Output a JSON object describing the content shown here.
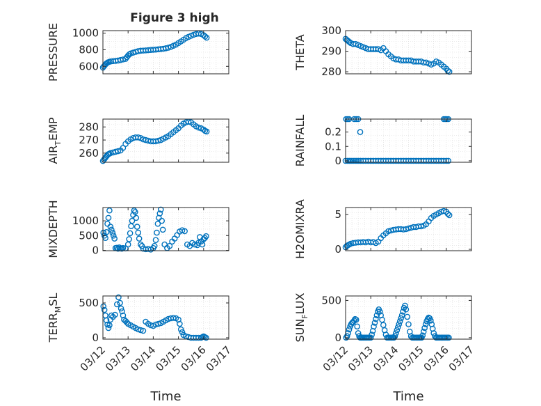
{
  "figure": {
    "title": "Figure 3 high",
    "background": "#ffffff",
    "marker_color": "#0072BD"
  },
  "chart_data": [
    {
      "type": "scatter",
      "title": "Figure 3 high",
      "ylabel": "PRESSURE",
      "xlabel": "",
      "ylim": [
        510,
        1030
      ],
      "yticks": [
        600,
        800,
        1000
      ],
      "xlim": [
        0,
        5
      ],
      "grid": true,
      "series": [
        {
          "x": [
            0,
            0.04,
            0.08,
            0.12,
            0.16,
            0.2,
            0.26,
            0.32,
            0.4,
            0.5,
            0.6,
            0.7,
            0.8,
            0.9,
            0.95,
            1.0,
            1.05,
            1.1,
            1.2,
            1.3,
            1.4,
            1.5,
            1.6,
            1.7,
            1.8,
            1.9,
            2.0,
            2.1,
            2.2,
            2.3,
            2.4,
            2.5,
            2.6,
            2.7,
            2.8,
            2.9,
            3.0,
            3.1,
            3.2,
            3.3,
            3.4,
            3.5,
            3.6,
            3.7,
            3.8,
            3.9,
            4.0,
            4.06,
            4.12
          ],
          "y": [
            585,
            600,
            615,
            630,
            640,
            648,
            655,
            660,
            663,
            666,
            670,
            676,
            683,
            690,
            710,
            730,
            745,
            755,
            765,
            775,
            783,
            788,
            790,
            792,
            795,
            798,
            800,
            802,
            805,
            808,
            812,
            818,
            825,
            835,
            848,
            862,
            880,
            900,
            920,
            940,
            955,
            968,
            980,
            990,
            995,
            990,
            975,
            960,
            945
          ]
        }
      ]
    },
    {
      "type": "scatter",
      "ylabel": "THETA",
      "xlabel": "",
      "ylim": [
        279,
        300
      ],
      "yticks": [
        280,
        290,
        300
      ],
      "xlim": [
        0,
        5
      ],
      "grid": true,
      "series": [
        {
          "x": [
            0,
            0.05,
            0.1,
            0.15,
            0.2,
            0.3,
            0.4,
            0.5,
            0.6,
            0.7,
            0.8,
            0.9,
            1.0,
            1.1,
            1.2,
            1.3,
            1.4,
            1.5,
            1.6,
            1.7,
            1.8,
            1.9,
            2.0,
            2.1,
            2.2,
            2.3,
            2.4,
            2.5,
            2.6,
            2.7,
            2.8,
            2.9,
            3.0,
            3.1,
            3.2,
            3.3,
            3.4,
            3.5,
            3.6,
            3.7,
            3.8,
            3.9,
            4.0,
            4.06,
            4.12
          ],
          "y": [
            296,
            295.5,
            295,
            294.5,
            294,
            293.5,
            293.5,
            293,
            292.5,
            292,
            291.5,
            291,
            291,
            291,
            291,
            291,
            290.5,
            291.5,
            290,
            288.5,
            287.5,
            286.5,
            286,
            286,
            285.5,
            285.5,
            285.5,
            285.5,
            285.5,
            285,
            285,
            285,
            285,
            284.5,
            284.5,
            284,
            283.5,
            284,
            285,
            284.5,
            283.5,
            282.5,
            281.5,
            280.5,
            280
          ]
        }
      ]
    },
    {
      "type": "scatter",
      "ylabel": "AIR_TEMP",
      "xlabel": "",
      "ylim": [
        253,
        286
      ],
      "yticks": [
        260,
        270,
        280
      ],
      "xlim": [
        0,
        5
      ],
      "grid": true,
      "series": [
        {
          "x": [
            0,
            0.04,
            0.08,
            0.12,
            0.16,
            0.2,
            0.25,
            0.3,
            0.4,
            0.5,
            0.6,
            0.7,
            0.8,
            0.9,
            1.0,
            1.1,
            1.2,
            1.3,
            1.4,
            1.5,
            1.6,
            1.7,
            1.8,
            1.9,
            2.0,
            2.1,
            2.2,
            2.3,
            2.4,
            2.5,
            2.6,
            2.7,
            2.8,
            2.9,
            3.0,
            3.1,
            3.2,
            3.3,
            3.4,
            3.5,
            3.6,
            3.7,
            3.8,
            3.9,
            4.0,
            4.06,
            4.12
          ],
          "y": [
            254,
            255,
            256,
            257,
            258,
            259,
            259.5,
            260,
            260.5,
            261,
            261.5,
            262,
            264,
            267,
            269,
            270.5,
            271.5,
            272,
            272,
            271.5,
            270.5,
            270,
            269.5,
            269,
            269,
            269,
            269.5,
            270,
            271,
            272,
            273,
            274.5,
            276,
            277.5,
            279,
            281,
            282.5,
            283.5,
            284,
            283.5,
            282,
            280.5,
            279.5,
            279,
            278,
            277,
            276.5
          ]
        }
      ]
    },
    {
      "type": "scatter",
      "ylabel": "RAINFALL",
      "xlabel": "",
      "ylim": [
        -0.01,
        0.29
      ],
      "yticks": [
        0,
        0.1,
        0.2
      ],
      "ytick_labels": [
        "0",
        "0.1",
        "0.2"
      ],
      "xlim": [
        0,
        5
      ],
      "grid": true,
      "series": [
        {
          "x": [
            0,
            0.08,
            0.15,
            0.22,
            0.3,
            0.38,
            0.45,
            0.52,
            0.6,
            0.7,
            0.8,
            0.9,
            1.0,
            1.1,
            1.2,
            1.3,
            1.4,
            1.5,
            1.6,
            1.7,
            1.8,
            1.9,
            2.0,
            2.1,
            2.2,
            2.3,
            2.4,
            2.5,
            2.6,
            2.7,
            2.8,
            2.9,
            3.0,
            3.1,
            3.2,
            3.3,
            3.4,
            3.5,
            3.6,
            3.7,
            3.8,
            3.9,
            4.0,
            4.08,
            0.02,
            0.08,
            0.14,
            0.34,
            0.42,
            0.5,
            0.58,
            3.9,
            3.96,
            4.02,
            4.08
          ],
          "y": [
            0,
            0,
            0,
            0,
            0,
            0,
            0,
            0,
            0,
            0,
            0,
            0,
            0,
            0,
            0,
            0,
            0,
            0,
            0,
            0,
            0,
            0,
            0,
            0,
            0,
            0,
            0,
            0,
            0,
            0,
            0,
            0,
            0,
            0,
            0,
            0,
            0,
            0,
            0,
            0,
            0,
            0,
            0,
            0,
            0.29,
            0.29,
            0.29,
            0.29,
            0.29,
            0.29,
            0.2,
            0.29,
            0.29,
            0.29,
            0.29
          ]
        }
      ]
    },
    {
      "type": "scatter",
      "ylabel": "MIXDEPTH",
      "xlabel": "",
      "ylim": [
        -10,
        1450
      ],
      "yticks": [
        0,
        500,
        1000
      ],
      "xlim": [
        0,
        5
      ],
      "grid": true,
      "series": [
        {
          "x": [
            0.02,
            0.06,
            0.1,
            0.14,
            0.18,
            0.22,
            0.26,
            0.3,
            0.34,
            0.38,
            0.42,
            0.46,
            0.5,
            0.55,
            0.6,
            0.65,
            0.7,
            0.75,
            0.8,
            0.9,
            1.0,
            1.04,
            1.08,
            1.12,
            1.16,
            1.2,
            1.24,
            1.28,
            1.32,
            1.36,
            1.4,
            1.44,
            1.5,
            1.55,
            1.6,
            1.7,
            1.8,
            1.9,
            2.0,
            2.05,
            2.1,
            2.14,
            2.18,
            2.22,
            2.26,
            2.3,
            2.34,
            2.38,
            2.45,
            2.55,
            2.65,
            2.75,
            2.85,
            2.95,
            3.05,
            3.15,
            3.25,
            3.35,
            3.45,
            3.55,
            3.65,
            3.75,
            3.8,
            3.85,
            3.9,
            3.95,
            4.0,
            4.05,
            4.1
          ],
          "y": [
            600,
            500,
            420,
            620,
            900,
            1100,
            1350,
            800,
            700,
            600,
            500,
            400,
            80,
            90,
            60,
            100,
            70,
            60,
            80,
            70,
            200,
            380,
            580,
            820,
            1000,
            1200,
            1350,
            1300,
            1100,
            800,
            600,
            400,
            200,
            150,
            60,
            40,
            50,
            30,
            80,
            150,
            350,
            600,
            900,
            1100,
            1250,
            1380,
            1000,
            700,
            200,
            80,
            150,
            300,
            400,
            520,
            640,
            680,
            650,
            200,
            150,
            250,
            200,
            180,
            260,
            450,
            300,
            200,
            380,
            420,
            480
          ]
        }
      ]
    },
    {
      "type": "scatter",
      "ylabel": "H2OMIXRA",
      "xlabel": "",
      "ylim": [
        -0.2,
        6
      ],
      "yticks": [
        0,
        5
      ],
      "xlim": [
        0,
        5
      ],
      "grid": true,
      "series": [
        {
          "x": [
            0,
            0.05,
            0.1,
            0.15,
            0.2,
            0.3,
            0.4,
            0.5,
            0.6,
            0.7,
            0.8,
            0.9,
            1.0,
            1.1,
            1.2,
            1.3,
            1.4,
            1.5,
            1.6,
            1.7,
            1.8,
            1.9,
            2.0,
            2.1,
            2.2,
            2.3,
            2.4,
            2.5,
            2.6,
            2.7,
            2.8,
            2.9,
            3.0,
            3.1,
            3.2,
            3.3,
            3.4,
            3.5,
            3.6,
            3.7,
            3.8,
            3.9,
            4.0,
            4.06,
            4.12
          ],
          "y": [
            0.3,
            0.5,
            0.6,
            0.7,
            0.8,
            0.9,
            0.95,
            1.0,
            1.0,
            1.05,
            1.0,
            1.1,
            1.0,
            1.05,
            0.9,
            1.1,
            1.6,
            2.0,
            2.3,
            2.6,
            2.7,
            2.8,
            2.85,
            2.9,
            2.9,
            2.85,
            2.9,
            3.0,
            3.1,
            3.2,
            3.2,
            3.3,
            3.3,
            3.4,
            3.6,
            4.0,
            4.5,
            4.8,
            5.0,
            5.2,
            5.4,
            5.5,
            5.4,
            5.1,
            4.9
          ]
        }
      ]
    },
    {
      "type": "scatter",
      "ylabel": "TERR_MSL",
      "xlabel": "Time",
      "ylim": [
        -20,
        600
      ],
      "yticks": [
        0,
        500
      ],
      "xlim": [
        0,
        5
      ],
      "xticks": [
        0,
        1,
        2,
        3,
        4,
        5
      ],
      "xtick_labels": [
        "03/12",
        "03/13",
        "03/14",
        "03/15",
        "03/16",
        "03/17"
      ],
      "grid": true,
      "series": [
        {
          "x": [
            0.02,
            0.06,
            0.1,
            0.14,
            0.18,
            0.22,
            0.26,
            0.3,
            0.34,
            0.4,
            0.48,
            0.56,
            0.62,
            0.68,
            0.72,
            0.76,
            0.8,
            0.84,
            0.9,
            0.95,
            1.0,
            1.1,
            1.2,
            1.3,
            1.4,
            1.5,
            1.6,
            1.7,
            1.8,
            1.9,
            2.0,
            2.1,
            2.2,
            2.3,
            2.4,
            2.5,
            2.6,
            2.7,
            2.8,
            2.9,
            3.0,
            3.05,
            3.1,
            3.15,
            3.2,
            3.3,
            3.4,
            3.5,
            3.6,
            3.7,
            3.8,
            3.9,
            3.95,
            4.0,
            4.05,
            4.1
          ],
          "y": [
            450,
            400,
            320,
            250,
            190,
            140,
            180,
            260,
            320,
            300,
            330,
            480,
            580,
            500,
            420,
            380,
            320,
            260,
            240,
            220,
            200,
            180,
            160,
            140,
            120,
            110,
            100,
            230,
            200,
            180,
            170,
            190,
            200,
            210,
            230,
            250,
            270,
            280,
            285,
            280,
            260,
            200,
            120,
            80,
            40,
            20,
            10,
            0,
            0,
            0,
            0,
            0,
            10,
            20,
            10,
            0
          ]
        }
      ]
    },
    {
      "type": "scatter",
      "ylabel": "SUN_FLUX",
      "xlabel": "Time",
      "ylim": [
        -20,
        560
      ],
      "yticks": [
        0,
        500
      ],
      "xlim": [
        0,
        5
      ],
      "xticks": [
        0,
        1,
        2,
        3,
        4,
        5
      ],
      "xtick_labels": [
        "03/12",
        "03/13",
        "03/14",
        "03/15",
        "03/16",
        "03/17"
      ],
      "grid": true,
      "series": [
        {
          "x": [
            0.02,
            0.06,
            0.1,
            0.14,
            0.18,
            0.22,
            0.26,
            0.3,
            0.34,
            0.38,
            0.42,
            0.46,
            0.5,
            0.54,
            0.58,
            0.62,
            0.66,
            0.7,
            0.75,
            0.8,
            0.85,
            0.9,
            0.95,
            1.0,
            1.04,
            1.08,
            1.12,
            1.16,
            1.2,
            1.24,
            1.28,
            1.32,
            1.36,
            1.4,
            1.45,
            1.5,
            1.55,
            1.6,
            1.65,
            1.7,
            1.75,
            1.8,
            1.84,
            1.88,
            1.92,
            1.96,
            2.0,
            2.04,
            2.08,
            2.12,
            2.16,
            2.2,
            2.24,
            2.28,
            2.32,
            2.36,
            2.4,
            2.45,
            2.5,
            2.55,
            2.6,
            2.65,
            2.7,
            2.75,
            2.8,
            2.85,
            2.9,
            2.94,
            2.98,
            3.02,
            3.06,
            3.1,
            3.14,
            3.18,
            3.22,
            3.26,
            3.3,
            3.34,
            3.38,
            3.42,
            3.46,
            3.5,
            3.55,
            3.6,
            3.65,
            3.7,
            3.75,
            3.8,
            3.85,
            3.9,
            3.95,
            4.0,
            4.05,
            4.1
          ],
          "y": [
            0,
            20,
            60,
            110,
            150,
            180,
            200,
            210,
            230,
            250,
            240,
            150,
            60,
            20,
            0,
            0,
            0,
            0,
            0,
            0,
            0,
            0,
            0,
            0,
            40,
            90,
            150,
            200,
            250,
            300,
            350,
            380,
            350,
            300,
            240,
            170,
            100,
            40,
            0,
            0,
            0,
            0,
            0,
            0,
            0,
            20,
            60,
            100,
            140,
            180,
            220,
            260,
            300,
            350,
            400,
            430,
            380,
            280,
            180,
            80,
            20,
            0,
            0,
            0,
            0,
            0,
            0,
            0,
            0,
            0,
            30,
            80,
            130,
            180,
            220,
            250,
            270,
            260,
            230,
            180,
            120,
            60,
            20,
            0,
            0,
            0,
            0,
            0,
            0,
            0,
            0,
            0,
            0,
            0
          ]
        }
      ]
    }
  ]
}
